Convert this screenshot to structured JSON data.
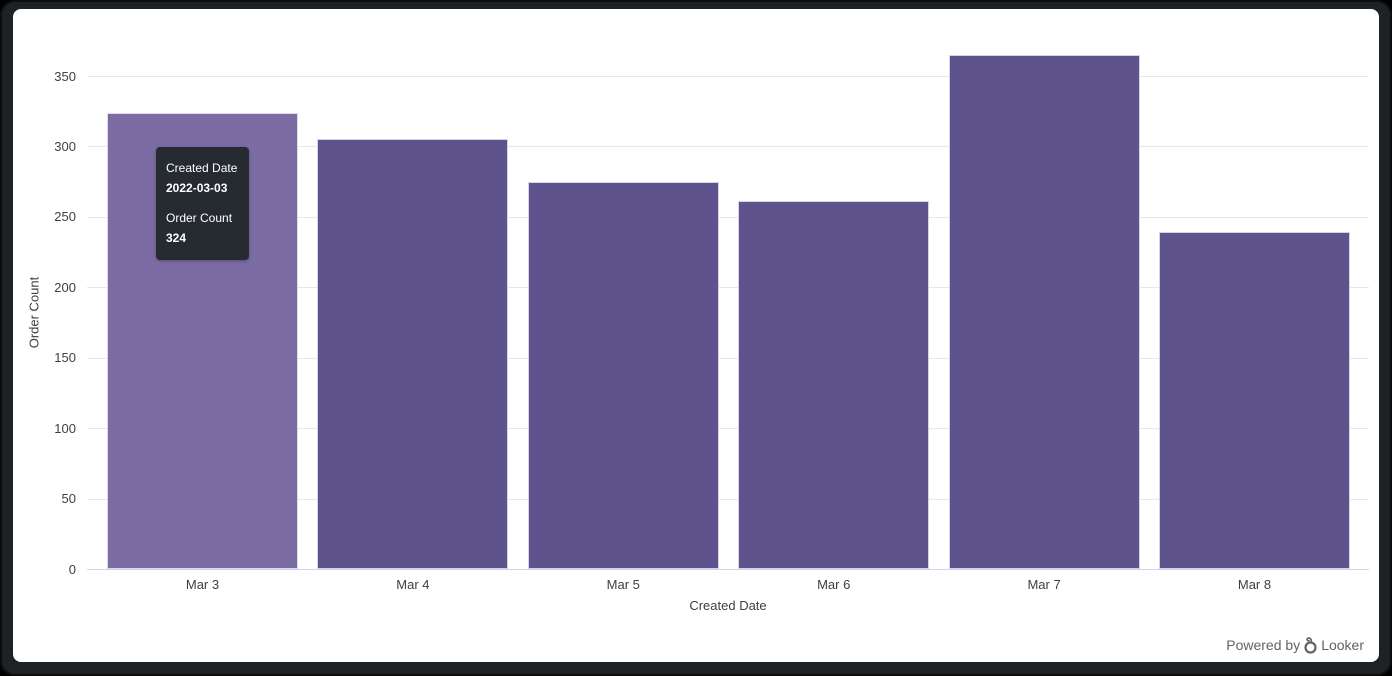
{
  "chart_data": {
    "type": "bar",
    "title": "",
    "categories": [
      "Mar 3",
      "Mar 4",
      "Mar 5",
      "Mar 6",
      "Mar 7",
      "Mar 8"
    ],
    "values": [
      324,
      305,
      275,
      261,
      365,
      239
    ],
    "xlabel": "Created Date",
    "ylabel": "Order Count",
    "ylim": [
      0,
      375
    ],
    "yticks": [
      0,
      50,
      100,
      150,
      200,
      250,
      300,
      350
    ],
    "grid": "horizontal",
    "legend": "none",
    "hovered_index": 0
  },
  "tooltip": {
    "dimension_label": "Created Date",
    "dimension_value": "2022-03-03",
    "measure_label": "Order Count",
    "measure_value": "324"
  },
  "footer": {
    "powered_by": "Powered by",
    "brand": "Looker"
  },
  "colors": {
    "bar": "#5e538c",
    "bar_hover": "#7b6ca3",
    "gridline": "#e7e7eb",
    "axis_line": "#ccd6eb",
    "tick_text": "#404040",
    "tooltip_bg": "#262b31",
    "tooltip_text": "#ffffff",
    "footer_text": "#5f6368",
    "frame": "#1f2224",
    "panel_bg": "#ffffff"
  }
}
